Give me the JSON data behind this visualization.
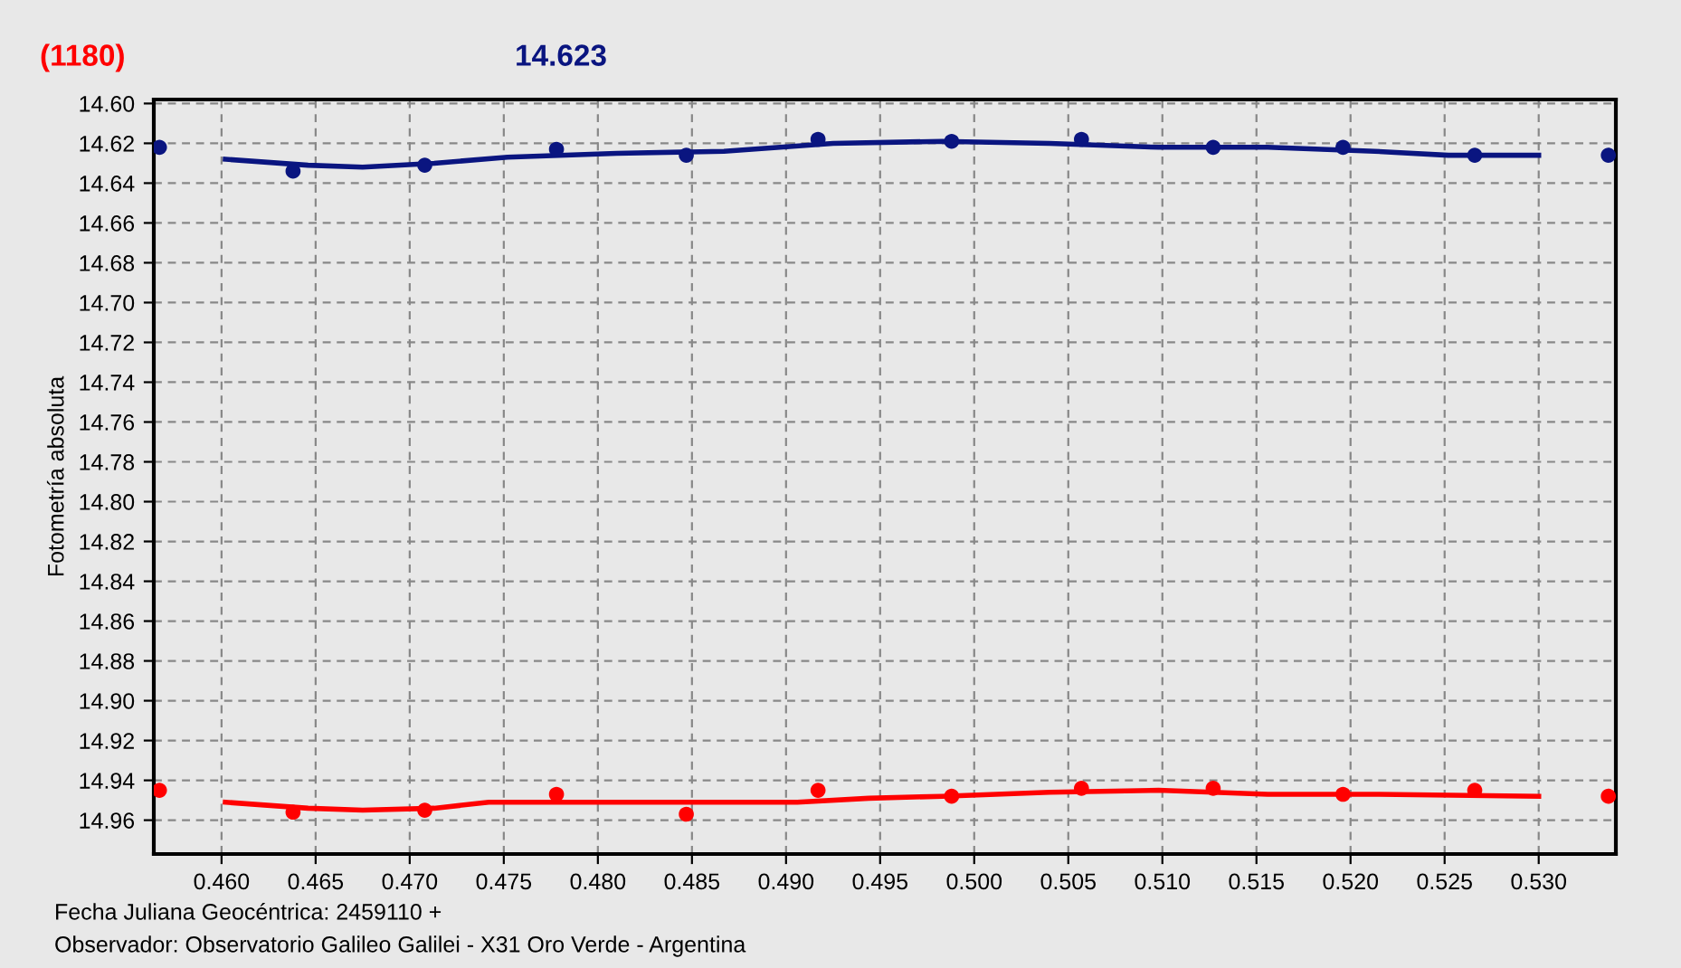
{
  "chart_data": {
    "type": "scatter",
    "title": "(1180)",
    "subtitle": "14.623",
    "xlabel": "Fecha Juliana Geocéntrica: 2459110 +",
    "ylabel": "Fotometría absoluta",
    "annotations": [
      "Observador: Observatorio Galileo Galilei - X31 Oro Verde - Argentina"
    ],
    "series": [
      {
        "color": "#0a1580",
        "x": [
          0.4567,
          0.4638,
          0.4708,
          0.4778,
          0.4847,
          0.4917,
          0.4988,
          0.5057,
          0.5127,
          0.5196,
          0.5266,
          0.5337
        ],
        "values": [
          14.622,
          14.634,
          14.631,
          14.623,
          14.626,
          14.618,
          14.619,
          14.618,
          14.622,
          14.622,
          14.626,
          14.626
        ]
      },
      {
        "type": "line",
        "color": "#0a1580",
        "marker": "none",
        "x": [
          0.4602,
          0.4646,
          0.4675,
          0.4713,
          0.4752,
          0.481,
          0.4867,
          0.4925,
          0.4983,
          0.504,
          0.5098,
          0.5156,
          0.5213,
          0.5252,
          0.53
        ],
        "values": [
          14.628,
          14.631,
          14.632,
          14.63,
          14.627,
          14.625,
          14.624,
          14.62,
          14.619,
          14.62,
          14.622,
          14.622,
          14.624,
          14.626,
          14.626
        ]
      },
      {
        "color": "#ff0000",
        "x": [
          0.4567,
          0.4638,
          0.4708,
          0.4778,
          0.4847,
          0.4917,
          0.4988,
          0.5057,
          0.5127,
          0.5196,
          0.5266,
          0.5337
        ],
        "values": [
          14.945,
          14.956,
          14.955,
          14.947,
          14.957,
          14.945,
          14.948,
          14.944,
          14.944,
          14.947,
          14.945,
          14.948
        ]
      },
      {
        "type": "line",
        "color": "#ff0000",
        "marker": "none",
        "x": [
          0.4602,
          0.4646,
          0.4675,
          0.4713,
          0.4742,
          0.4771,
          0.4906,
          0.4944,
          0.4983,
          0.504,
          0.5098,
          0.5156,
          0.5213,
          0.53
        ],
        "values": [
          14.951,
          14.954,
          14.955,
          14.954,
          14.951,
          14.951,
          14.951,
          14.949,
          14.948,
          14.946,
          14.945,
          14.947,
          14.947,
          14.948
        ]
      }
    ],
    "marker": "circle",
    "line_style": "solid",
    "grid": true,
    "xlim": [
      0.4564,
      0.5341
    ],
    "xticks": [
      {
        "value": 0.46,
        "label": "0.460"
      },
      {
        "value": 0.465,
        "label": "0.465"
      },
      {
        "value": 0.47,
        "label": "0.470"
      },
      {
        "value": 0.475,
        "label": "0.475"
      },
      {
        "value": 0.48,
        "label": "0.480"
      },
      {
        "value": 0.485,
        "label": "0.485"
      },
      {
        "value": 0.49,
        "label": "0.490"
      },
      {
        "value": 0.495,
        "label": "0.495"
      },
      {
        "value": 0.5,
        "label": "0.500"
      },
      {
        "value": 0.505,
        "label": "0.505"
      },
      {
        "value": 0.51,
        "label": "0.510"
      },
      {
        "value": 0.515,
        "label": "0.515"
      },
      {
        "value": 0.52,
        "label": "0.520"
      },
      {
        "value": 0.525,
        "label": "0.525"
      },
      {
        "value": 0.53,
        "label": "0.530"
      }
    ],
    "ylim": [
      14.977,
      14.598
    ],
    "yticks": [
      {
        "value": 14.6,
        "label": "14.60"
      },
      14.62,
      14.64,
      14.66,
      14.68,
      {
        "value": 14.7,
        "label": "14.70"
      },
      14.72,
      14.74,
      14.76,
      14.78,
      {
        "value": 14.8,
        "label": "14.80"
      },
      14.82,
      14.84,
      14.86,
      14.88,
      {
        "value": 14.9,
        "label": "14.90"
      },
      14.92,
      14.94,
      14.96
    ]
  }
}
